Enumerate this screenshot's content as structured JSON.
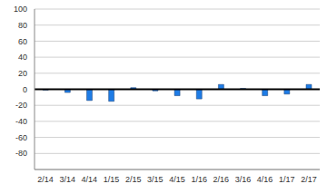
{
  "chart_data": {
    "type": "bar",
    "categories": [
      "2/14",
      "3/14",
      "4/14",
      "1/15",
      "2/15",
      "3/15",
      "4/15",
      "1/16",
      "2/16",
      "3/16",
      "4/16",
      "1/17",
      "2/17"
    ],
    "values": [
      -1,
      -4,
      -14,
      -15,
      2,
      -2,
      -8,
      -12,
      6,
      1,
      -8,
      -6,
      6
    ],
    "color": "#1e7ce6",
    "ylim": [
      -100,
      100
    ],
    "yticks": [
      -80,
      -60,
      -40,
      -20,
      0,
      20,
      40,
      60,
      80,
      100
    ],
    "grid": true
  }
}
